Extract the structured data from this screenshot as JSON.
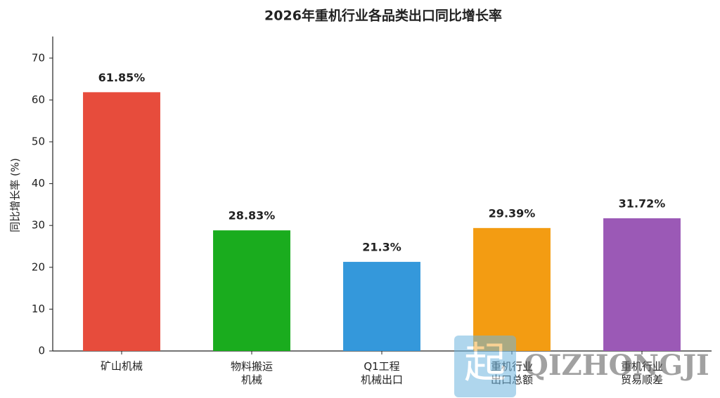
{
  "chart_data": {
    "type": "bar",
    "title": "2026年重机行业各品类出口同比增长率",
    "y_label": "同比增长率 (%)",
    "categories": [
      "矿山机械",
      "物料搬运\n机械",
      "Q1工程\n机械出口",
      "重机行业\n出口总额",
      "重机行业\n贸易顺差"
    ],
    "values": [
      61.85,
      28.83,
      21.3,
      29.39,
      31.72
    ],
    "value_labels": [
      "61.85%",
      "28.83%",
      "21.3%",
      "29.39%",
      "31.72%"
    ],
    "colors": [
      "#e74c3c",
      "#1aac1e",
      "#3498db",
      "#f39c12",
      "#9b59b6"
    ],
    "ylim": [
      0,
      75
    ],
    "yticks": [
      0,
      10,
      20,
      30,
      40,
      50,
      60,
      70
    ],
    "grid": false
  },
  "watermark": {
    "icon": "起",
    "text": "QIZHONGJI"
  }
}
